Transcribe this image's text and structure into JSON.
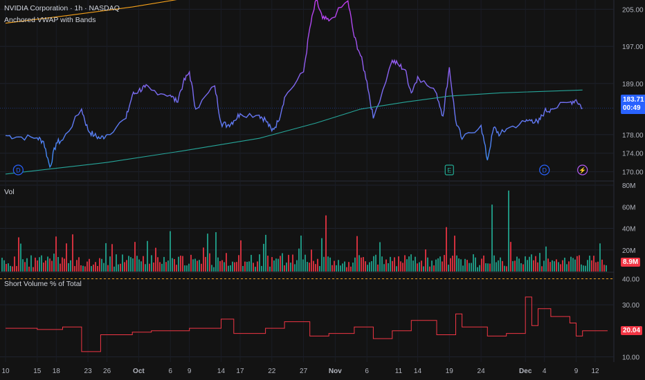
{
  "header": {
    "symbol_title": "NVIDIA Corporation · 1h · NASDAQ",
    "indicator_label": "Anchored VWAP with Bands"
  },
  "price_badge": {
    "price": "183.71",
    "countdown": "00:49",
    "color": "#2962ff"
  },
  "volume_panel": {
    "label": "Vol",
    "last_badge": "8.9M",
    "badge_color": "#f23645"
  },
  "short_panel": {
    "label": "Short Volume % of Total",
    "last_badge": "20.04",
    "badge_color": "#f23645"
  },
  "event_markers": [
    {
      "type": "D",
      "x": "Sep 12",
      "color": "#2962ff"
    },
    {
      "type": "E",
      "x": "Nov 19",
      "color": "#22ab94"
    },
    {
      "type": "D",
      "x": "Dec 4",
      "color": "#2962ff"
    },
    {
      "type": "split",
      "x": "Dec 10",
      "color": "#b55cf5"
    }
  ],
  "chart_data": [
    {
      "type": "line",
      "title": "NVIDIA Corporation · 1h · NASDAQ",
      "ylim": [
        168,
        207
      ],
      "y_ticks": [
        "205.00",
        "197.00",
        "189.00",
        "178.00",
        "174.00",
        "170.00"
      ],
      "x_ticks": [
        "10",
        "15",
        "18",
        "23",
        "26",
        "Oct",
        "6",
        "9",
        "14",
        "17",
        "22",
        "27",
        "Nov",
        "6",
        "11",
        "14",
        "19",
        "24",
        "Dec",
        "4",
        "9",
        "12"
      ],
      "series": [
        {
          "color": "#7e57c2",
          "values": [
            {
              "x": "Sep 10",
              "y": 177.8
            },
            {
              "x": "Sep 12",
              "y": 177.5
            },
            {
              "x": "Sep 15",
              "y": 177.3
            },
            {
              "x": "Sep 16",
              "y": 176.5
            },
            {
              "x": "Sep 17",
              "y": 171.0
            },
            {
              "x": "Sep 18",
              "y": 176.2
            },
            {
              "x": "Sep 19",
              "y": 176.8
            },
            {
              "x": "Sep 22",
              "y": 183.5
            },
            {
              "x": "Sep 23",
              "y": 179.0
            },
            {
              "x": "Sep 24",
              "y": 177.8
            },
            {
              "x": "Sep 25",
              "y": 177.2
            },
            {
              "x": "Sep 26",
              "y": 178.0
            },
            {
              "x": "Sep 29",
              "y": 181.5
            },
            {
              "x": "Sep 30",
              "y": 186.5
            },
            {
              "x": "Oct 1",
              "y": 187.5
            },
            {
              "x": "Oct 2",
              "y": 188.2
            },
            {
              "x": "Oct 3",
              "y": 187.6
            },
            {
              "x": "Oct 6",
              "y": 186.5
            },
            {
              "x": "Oct 7",
              "y": 185.0
            },
            {
              "x": "Oct 8",
              "y": 189.0
            },
            {
              "x": "Oct 9",
              "y": 191.5
            },
            {
              "x": "Oct 10",
              "y": 183.5
            },
            {
              "x": "Oct 13",
              "y": 188.5
            },
            {
              "x": "Oct 14",
              "y": 180.5
            },
            {
              "x": "Oct 15",
              "y": 180.0
            },
            {
              "x": "Oct 16",
              "y": 181.0
            },
            {
              "x": "Oct 17",
              "y": 182.5
            },
            {
              "x": "Oct 20",
              "y": 182.2
            },
            {
              "x": "Oct 21",
              "y": 181.2
            },
            {
              "x": "Oct 22",
              "y": 178.8
            },
            {
              "x": "Oct 23",
              "y": 180.8
            },
            {
              "x": "Oct 24",
              "y": 186.0
            },
            {
              "x": "Oct 27",
              "y": 191.5
            },
            {
              "x": "Oct 28",
              "y": 201.0
            },
            {
              "x": "Oct 29",
              "y": 207.0
            },
            {
              "x": "Oct 30",
              "y": 203.0
            },
            {
              "x": "Oct 31",
              "y": 202.5
            },
            {
              "x": "Nov 3",
              "y": 206.8
            },
            {
              "x": "Nov 4",
              "y": 199.0
            },
            {
              "x": "Nov 5",
              "y": 195.0
            },
            {
              "x": "Nov 6",
              "y": 189.5
            },
            {
              "x": "Nov 7",
              "y": 181.5
            },
            {
              "x": "Nov 10",
              "y": 194.0
            },
            {
              "x": "Nov 11",
              "y": 193.0
            },
            {
              "x": "Nov 12",
              "y": 192.0
            },
            {
              "x": "Nov 13",
              "y": 187.0
            },
            {
              "x": "Nov 14",
              "y": 190.5
            },
            {
              "x": "Nov 17",
              "y": 186.8
            },
            {
              "x": "Nov 18",
              "y": 182.0
            },
            {
              "x": "Nov 19",
              "y": 192.5
            },
            {
              "x": "Nov 20",
              "y": 181.0
            },
            {
              "x": "Nov 21",
              "y": 177.0
            },
            {
              "x": "Nov 24",
              "y": 180.0
            },
            {
              "x": "Nov 25",
              "y": 172.5
            },
            {
              "x": "Nov 26",
              "y": 179.5
            },
            {
              "x": "Nov 27",
              "y": 178.0
            },
            {
              "x": "Nov 28",
              "y": 179.2
            },
            {
              "x": "Dec 1",
              "y": 180.8
            },
            {
              "x": "Dec 2",
              "y": 181.2
            },
            {
              "x": "Dec 3",
              "y": 180.5
            },
            {
              "x": "Dec 4",
              "y": 183.0
            },
            {
              "x": "Dec 5",
              "y": 183.5
            },
            {
              "x": "Dec 8",
              "y": 185.0
            },
            {
              "x": "Dec 9",
              "y": 185.5
            },
            {
              "x": "Dec 10",
              "y": 183.7
            }
          ]
        },
        {
          "color": "#26a69a",
          "values": [
            {
              "x": "Sep 10",
              "y": 169.5
            },
            {
              "x": "Sep 26",
              "y": 172.0
            },
            {
              "x": "Oct 8",
              "y": 174.5
            },
            {
              "x": "Oct 20",
              "y": 177.2
            },
            {
              "x": "Oct 29",
              "y": 180.5
            },
            {
              "x": "Nov 5",
              "y": 183.5
            },
            {
              "x": "Nov 12",
              "y": 185.0
            },
            {
              "x": "Nov 19",
              "y": 186.3
            },
            {
              "x": "Nov 27",
              "y": 187.0
            },
            {
              "x": "Dec 10",
              "y": 187.6
            }
          ]
        },
        {
          "color": "#f7a21b",
          "values": [
            {
              "x": "Sep 10",
              "y": 202.0
            },
            {
              "x": "Sep 20",
              "y": 203.7
            },
            {
              "x": "Sep 30",
              "y": 205.5
            },
            {
              "x": "Oct 8",
              "y": 207.3
            }
          ]
        }
      ]
    },
    {
      "type": "bar",
      "title": "Vol",
      "ylim": [
        0,
        80
      ],
      "y_ticks": [
        "80M",
        "60M",
        "40M",
        "20M"
      ],
      "series": [
        {
          "name": "up",
          "color": "#22ab94"
        },
        {
          "name": "down",
          "color": "#f23645"
        }
      ]
    },
    {
      "type": "line",
      "title": "Short Volume % of Total",
      "ylim": [
        8,
        42
      ],
      "y_ticks": [
        "40.00",
        "30.00",
        "10.00"
      ],
      "reference_line": 40,
      "series": [
        {
          "color": "#f23645",
          "values": [
            {
              "x": "Sep 10",
              "y": 21.0
            },
            {
              "x": "Sep 15",
              "y": 20.5
            },
            {
              "x": "Sep 19",
              "y": 21.5
            },
            {
              "x": "Sep 22",
              "y": 12.0
            },
            {
              "x": "Sep 25",
              "y": 18.5
            },
            {
              "x": "Sep 30",
              "y": 19.5
            },
            {
              "x": "Oct 3",
              "y": 20.0
            },
            {
              "x": "Oct 9",
              "y": 21.0
            },
            {
              "x": "Oct 14",
              "y": 24.5
            },
            {
              "x": "Oct 16",
              "y": 19.0
            },
            {
              "x": "Oct 21",
              "y": 21.0
            },
            {
              "x": "Oct 24",
              "y": 23.5
            },
            {
              "x": "Oct 28",
              "y": 18.0
            },
            {
              "x": "Oct 31",
              "y": 19.0
            },
            {
              "x": "Nov 4",
              "y": 21.5
            },
            {
              "x": "Nov 7",
              "y": 17.0
            },
            {
              "x": "Nov 10",
              "y": 20.0
            },
            {
              "x": "Nov 13",
              "y": 24.0
            },
            {
              "x": "Nov 17",
              "y": 18.5
            },
            {
              "x": "Nov 20",
              "y": 26.5
            },
            {
              "x": "Nov 21",
              "y": 21.5
            },
            {
              "x": "Nov 25",
              "y": 18.0
            },
            {
              "x": "Nov 28",
              "y": 19.0
            },
            {
              "x": "Dec 1",
              "y": 33.0
            },
            {
              "x": "Dec 2",
              "y": 22.0
            },
            {
              "x": "Dec 3",
              "y": 28.5
            },
            {
              "x": "Dec 5",
              "y": 25.5
            },
            {
              "x": "Dec 8",
              "y": 23.0
            },
            {
              "x": "Dec 9",
              "y": 18.0
            },
            {
              "x": "Dec 10",
              "y": 20.04
            }
          ]
        }
      ]
    }
  ]
}
